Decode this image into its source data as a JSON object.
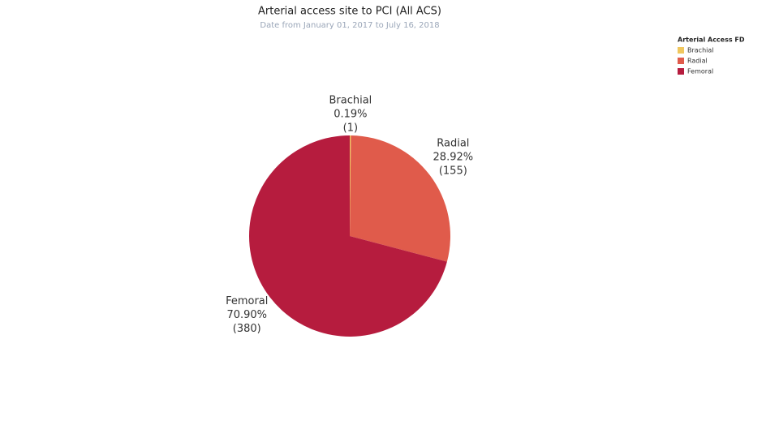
{
  "chart_data": {
    "type": "pie",
    "title": "Arterial access site to PCI (All ACS)",
    "subtitle": "Date from January 01, 2017 to July 16, 2018",
    "legend_title": "Arterial Access FD",
    "legend_position": "top-right",
    "categories": [
      "Brachial",
      "Radial",
      "Femoral"
    ],
    "values": [
      0.19,
      28.92,
      70.9
    ],
    "value_labels": [
      "0.19%",
      "28.92%",
      "70.90%"
    ],
    "counts": [
      1,
      155,
      380
    ],
    "count_labels": [
      "(1)",
      "(155)",
      "(380)"
    ],
    "colors": [
      "#f0c75e",
      "#e05b4b",
      "#b61c3e"
    ]
  }
}
